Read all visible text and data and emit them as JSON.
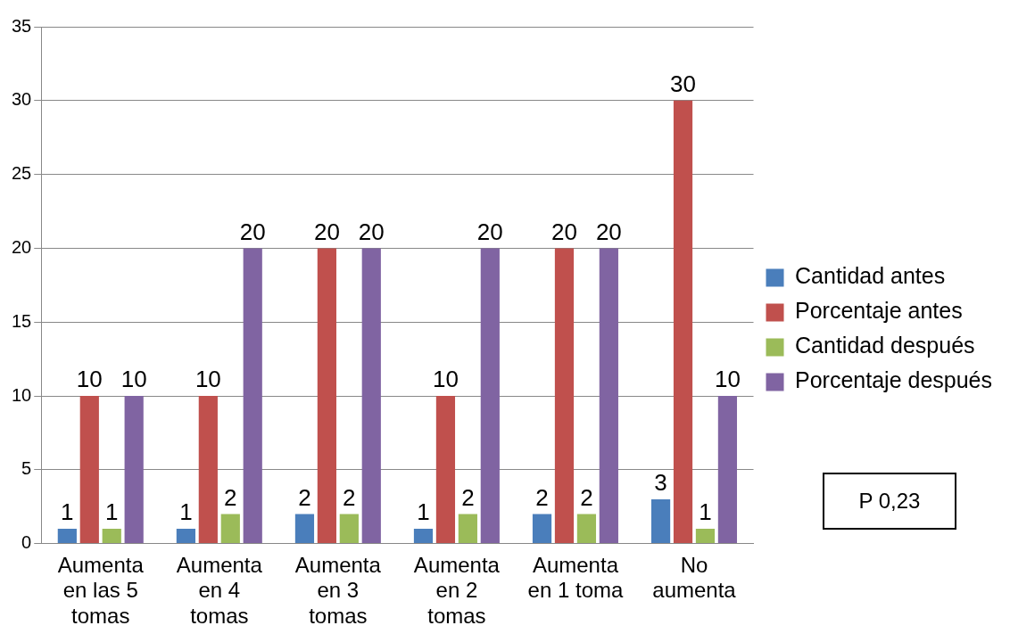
{
  "chart_data": {
    "type": "bar",
    "categories": [
      "Aumenta en las 5 tomas",
      "Aumenta en 4 tomas",
      "Aumenta en 3 tomas",
      "Aumenta en 2 tomas",
      "Aumenta en 1 toma",
      "No aumenta"
    ],
    "series": [
      {
        "name": "Cantidad antes",
        "color": "#4a7ebb",
        "values": [
          1,
          1,
          2,
          1,
          2,
          3
        ]
      },
      {
        "name": "Porcentaje antes",
        "color": "#c0504d",
        "values": [
          10,
          10,
          20,
          10,
          20,
          30
        ]
      },
      {
        "name": "Cantidad después",
        "color": "#9bbb59",
        "values": [
          1,
          2,
          2,
          2,
          2,
          1
        ]
      },
      {
        "name": "Porcentaje después",
        "color": "#8064a2",
        "values": [
          10,
          20,
          20,
          20,
          20,
          10
        ]
      }
    ],
    "ylim": [
      0,
      35
    ],
    "yticks": [
      0,
      5,
      10,
      15,
      20,
      25,
      30,
      35
    ],
    "grid": "y",
    "legend": "right",
    "data_labels": true,
    "annotations": [
      "P 0,23"
    ]
  }
}
